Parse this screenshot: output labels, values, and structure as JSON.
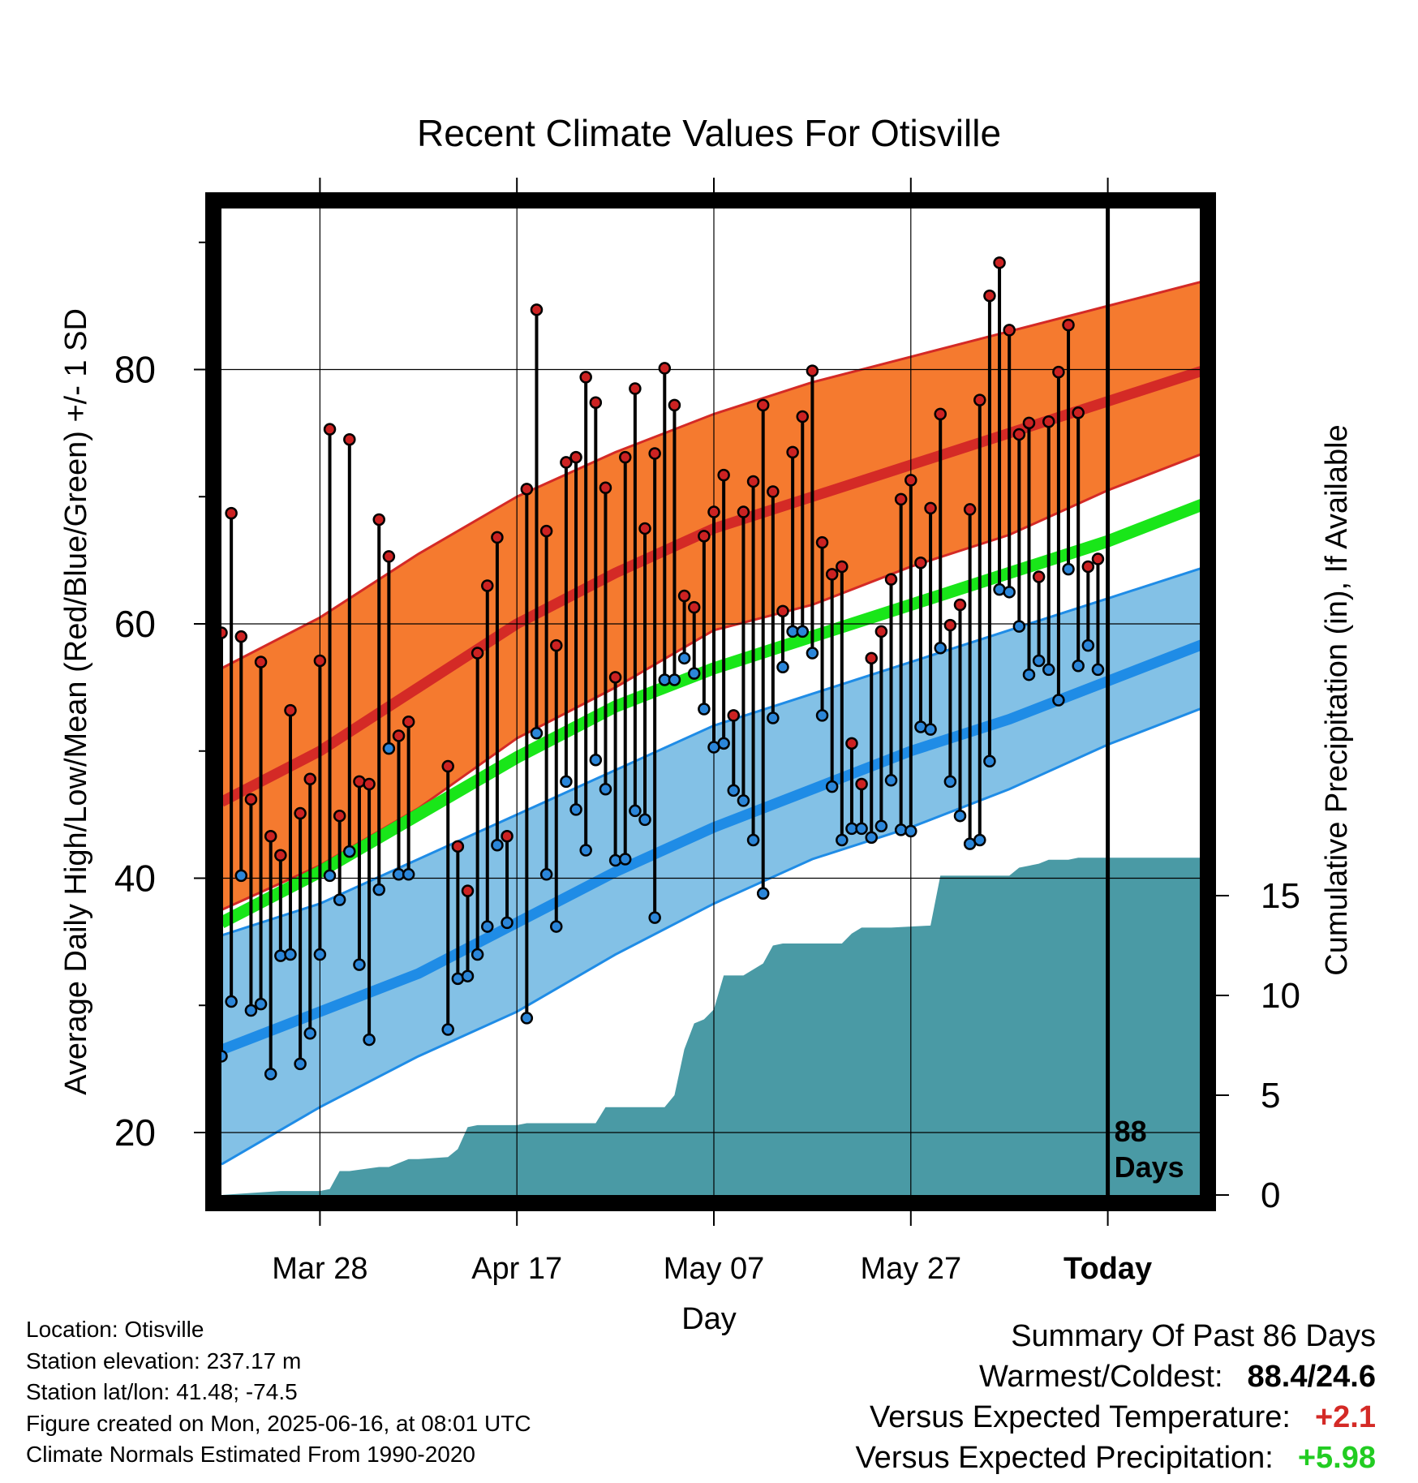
{
  "chart_data": {
    "type": "line",
    "title": "Recent Climate Values For Otisville",
    "xlabel": "Day",
    "ylabel": "Average Daily High/Low/Mean (Red/Blue/Green) +/- 1 SD",
    "y2label": "Cumulative Precipitation (in), If Available",
    "x_tick_labels": [
      "Mar 28",
      "Apr 17",
      "May 07",
      "May 27",
      "Today"
    ],
    "x_tick_days": [
      10,
      30,
      50,
      70,
      90
    ],
    "x_range": [
      0,
      100
    ],
    "ylim": [
      15,
      94
    ],
    "y_ticks": [
      20,
      40,
      60,
      80
    ],
    "y2lim": [
      0,
      41.5
    ],
    "y2_ticks": [
      0,
      5,
      10,
      15
    ],
    "grid": true,
    "today_marker": {
      "day": 90,
      "label_line1": "88",
      "label_line2": "Days"
    },
    "colors": {
      "high_band": "#f57a2f",
      "high_band_edge": "#d42a26",
      "high_mean": "#d42a26",
      "mean_temp": "#19e619",
      "low_band": "#83c1e6",
      "low_band_edge": "#1f8ce6",
      "low_mean": "#1f8ce6",
      "precip": "#4a9aa5",
      "high_point": "#cc2222",
      "low_point": "#2b86d9"
    },
    "normals": {
      "days": [
        0,
        10,
        20,
        30,
        40,
        50,
        60,
        70,
        80,
        90,
        100
      ],
      "high_upper": [
        56.5,
        60.5,
        65.5,
        70,
        73.5,
        76.5,
        79,
        81,
        83,
        85,
        87
      ],
      "high_mean": [
        46,
        50,
        55,
        60,
        64,
        67.5,
        70,
        72.5,
        75,
        77.5,
        80
      ],
      "high_lower": [
        37.5,
        41,
        45.5,
        51,
        55,
        59.5,
        61.5,
        64.5,
        67,
        70.5,
        73.5
      ],
      "mean_temp": [
        36.5,
        40.5,
        45,
        49.5,
        53.5,
        56.5,
        59,
        61.5,
        64,
        66.5,
        69.5
      ],
      "low_upper": [
        35.5,
        38,
        41.5,
        45,
        48.5,
        52,
        54.5,
        57,
        59.5,
        62,
        64.5
      ],
      "low_mean": [
        26.5,
        29.5,
        32.5,
        36.5,
        40.5,
        44,
        47,
        50,
        52.5,
        55.5,
        58.5
      ],
      "low_lower": [
        17.5,
        22,
        26,
        29.5,
        34,
        38,
        41.5,
        44,
        47,
        50.5,
        53.5
      ]
    },
    "observations": [
      {
        "day": 0,
        "high": 59.3,
        "low": 26.0
      },
      {
        "day": 1,
        "high": 68.7,
        "low": 30.3
      },
      {
        "day": 2,
        "high": 59.0,
        "low": 40.2
      },
      {
        "day": 3,
        "high": 46.2,
        "low": 29.6
      },
      {
        "day": 4,
        "high": 57.0,
        "low": 30.1
      },
      {
        "day": 5,
        "high": 43.3,
        "low": 24.6
      },
      {
        "day": 6,
        "high": 41.8,
        "low": 33.9
      },
      {
        "day": 7,
        "high": 53.2,
        "low": 34.0
      },
      {
        "day": 8,
        "high": 45.1,
        "low": 25.4
      },
      {
        "day": 9,
        "high": 47.8,
        "low": 27.8
      },
      {
        "day": 10,
        "high": 57.1,
        "low": 34.0
      },
      {
        "day": 11,
        "high": 75.3,
        "low": 40.2
      },
      {
        "day": 12,
        "high": 44.9,
        "low": 38.3
      },
      {
        "day": 13,
        "high": 74.5,
        "low": 42.1
      },
      {
        "day": 14,
        "high": 47.6,
        "low": 33.2
      },
      {
        "day": 15,
        "high": 47.4,
        "low": 27.3
      },
      {
        "day": 16,
        "high": 68.2,
        "low": 39.1
      },
      {
        "day": 17,
        "high": 65.3,
        "low": 50.2
      },
      {
        "day": 18,
        "high": 51.2,
        "low": 40.3
      },
      {
        "day": 19,
        "high": 52.3,
        "low": 40.3
      },
      {
        "day": 23,
        "high": 48.8,
        "low": 28.1
      },
      {
        "day": 24,
        "high": 42.5,
        "low": 32.1
      },
      {
        "day": 25,
        "high": 39.0,
        "low": 32.3
      },
      {
        "day": 26,
        "high": 57.7,
        "low": 34.0
      },
      {
        "day": 27,
        "high": 63.0,
        "low": 36.2
      },
      {
        "day": 28,
        "high": 66.8,
        "low": 42.6
      },
      {
        "day": 29,
        "high": 43.3,
        "low": 36.5
      },
      {
        "day": 31,
        "high": 70.6,
        "low": 29.0
      },
      {
        "day": 32,
        "high": 84.7,
        "low": 51.4
      },
      {
        "day": 33,
        "high": 67.3,
        "low": 40.3
      },
      {
        "day": 34,
        "high": 58.3,
        "low": 36.2
      },
      {
        "day": 35,
        "high": 72.7,
        "low": 47.6
      },
      {
        "day": 36,
        "high": 73.1,
        "low": 45.4
      },
      {
        "day": 37,
        "high": 79.4,
        "low": 42.2
      },
      {
        "day": 38,
        "high": 77.4,
        "low": 49.3
      },
      {
        "day": 39,
        "high": 70.7,
        "low": 47.0
      },
      {
        "day": 40,
        "high": 55.8,
        "low": 41.4
      },
      {
        "day": 41,
        "high": 73.1,
        "low": 41.5
      },
      {
        "day": 42,
        "high": 78.5,
        "low": 45.3
      },
      {
        "day": 43,
        "high": 67.5,
        "low": 44.6
      },
      {
        "day": 44,
        "high": 73.4,
        "low": 36.9
      },
      {
        "day": 45,
        "high": 80.1,
        "low": 55.6
      },
      {
        "day": 46,
        "high": 77.2,
        "low": 55.6
      },
      {
        "day": 47,
        "high": 62.2,
        "low": 57.3
      },
      {
        "day": 48,
        "high": 61.3,
        "low": 56.1
      },
      {
        "day": 49,
        "high": 66.9,
        "low": 53.3
      },
      {
        "day": 50,
        "high": 68.8,
        "low": 50.3
      },
      {
        "day": 51,
        "high": 71.7,
        "low": 50.6
      },
      {
        "day": 52,
        "high": 52.8,
        "low": 46.9
      },
      {
        "day": 53,
        "high": 68.8,
        "low": 46.1
      },
      {
        "day": 54,
        "high": 71.2,
        "low": 43.0
      },
      {
        "day": 55,
        "high": 77.2,
        "low": 38.8
      },
      {
        "day": 56,
        "high": 70.4,
        "low": 52.6
      },
      {
        "day": 57,
        "high": 61.0,
        "low": 56.6
      },
      {
        "day": 58,
        "high": 73.5,
        "low": 59.4
      },
      {
        "day": 59,
        "high": 76.3,
        "low": 59.4
      },
      {
        "day": 60,
        "high": 79.9,
        "low": 57.7
      },
      {
        "day": 61,
        "high": 66.4,
        "low": 52.8
      },
      {
        "day": 62,
        "high": 63.9,
        "low": 47.2
      },
      {
        "day": 63,
        "high": 64.5,
        "low": 43.0
      },
      {
        "day": 64,
        "high": 50.6,
        "low": 43.9
      },
      {
        "day": 65,
        "high": 47.4,
        "low": 43.9
      },
      {
        "day": 66,
        "high": 57.3,
        "low": 43.2
      },
      {
        "day": 67,
        "high": 59.4,
        "low": 44.1
      },
      {
        "day": 68,
        "high": 63.5,
        "low": 47.7
      },
      {
        "day": 69,
        "high": 69.8,
        "low": 43.8
      },
      {
        "day": 70,
        "high": 71.3,
        "low": 43.7
      },
      {
        "day": 71,
        "high": 64.8,
        "low": 51.9
      },
      {
        "day": 72,
        "high": 69.1,
        "low": 51.7
      },
      {
        "day": 73,
        "high": 76.5,
        "low": 58.1
      },
      {
        "day": 74,
        "high": 59.9,
        "low": 47.6
      },
      {
        "day": 75,
        "high": 61.5,
        "low": 44.9
      },
      {
        "day": 76,
        "high": 69.0,
        "low": 42.7
      },
      {
        "day": 77,
        "high": 77.6,
        "low": 43.0
      },
      {
        "day": 78,
        "high": 85.8,
        "low": 49.2
      },
      {
        "day": 79,
        "high": 88.4,
        "low": 62.7
      },
      {
        "day": 80,
        "high": 83.1,
        "low": 62.5
      },
      {
        "day": 81,
        "high": 74.9,
        "low": 59.8
      },
      {
        "day": 82,
        "high": 75.8,
        "low": 56.0
      },
      {
        "day": 83,
        "high": 63.7,
        "low": 57.1
      },
      {
        "day": 84,
        "high": 75.9,
        "low": 56.4
      },
      {
        "day": 85,
        "high": 79.8,
        "low": 54.0
      },
      {
        "day": 86,
        "high": 83.5,
        "low": 64.3
      },
      {
        "day": 87,
        "high": 76.6,
        "low": 56.7
      },
      {
        "day": 88,
        "high": 64.5,
        "low": 58.3
      },
      {
        "day": 89,
        "high": 65.1,
        "low": 56.4
      }
    ],
    "precip_cumulative": {
      "days": [
        0,
        3,
        6,
        10,
        11,
        12,
        13,
        16,
        17,
        19,
        20,
        23,
        24,
        25,
        26,
        27,
        30,
        31,
        32,
        34,
        38,
        39,
        40,
        44,
        45,
        46,
        47,
        48,
        49,
        50,
        51,
        52,
        53,
        55,
        56,
        57,
        58,
        59,
        63,
        64,
        65,
        66,
        68,
        72,
        73,
        76,
        80,
        81,
        83,
        84,
        86,
        87,
        100
      ],
      "values": [
        0,
        0.1,
        0.2,
        0.2,
        0.3,
        1.2,
        1.2,
        1.4,
        1.4,
        1.8,
        1.8,
        1.9,
        2.3,
        3.4,
        3.5,
        3.5,
        3.5,
        3.6,
        3.6,
        3.6,
        3.6,
        4.4,
        4.4,
        4.4,
        4.4,
        5.0,
        7.3,
        8.6,
        8.8,
        9.3,
        11.0,
        11.0,
        11.0,
        11.6,
        12.5,
        12.6,
        12.6,
        12.6,
        12.6,
        13.1,
        13.4,
        13.4,
        13.4,
        13.5,
        16.0,
        16.0,
        16.0,
        16.4,
        16.6,
        16.8,
        16.8,
        16.9,
        16.9
      ]
    }
  },
  "meta": {
    "lines": [
      "Location: Otisville",
      "Station elevation: 237.17 m",
      "Station lat/lon: 41.48; -74.5",
      "Figure created on Mon, 2025-06-16, at 08:01 UTC",
      "Climate Normals Estimated From 1990-2020"
    ]
  },
  "summary": {
    "title": "Summary Of Past 86 Days",
    "warmest_label": "Warmest/Coldest:",
    "warmest_value": "88.4/24.6",
    "temp_label": "Versus Expected Temperature:",
    "temp_value": "+2.1",
    "temp_color": "#d42a26",
    "precip_label": "Versus Expected Precipitation:",
    "precip_value": "+5.98",
    "precip_color": "#22cc22"
  }
}
